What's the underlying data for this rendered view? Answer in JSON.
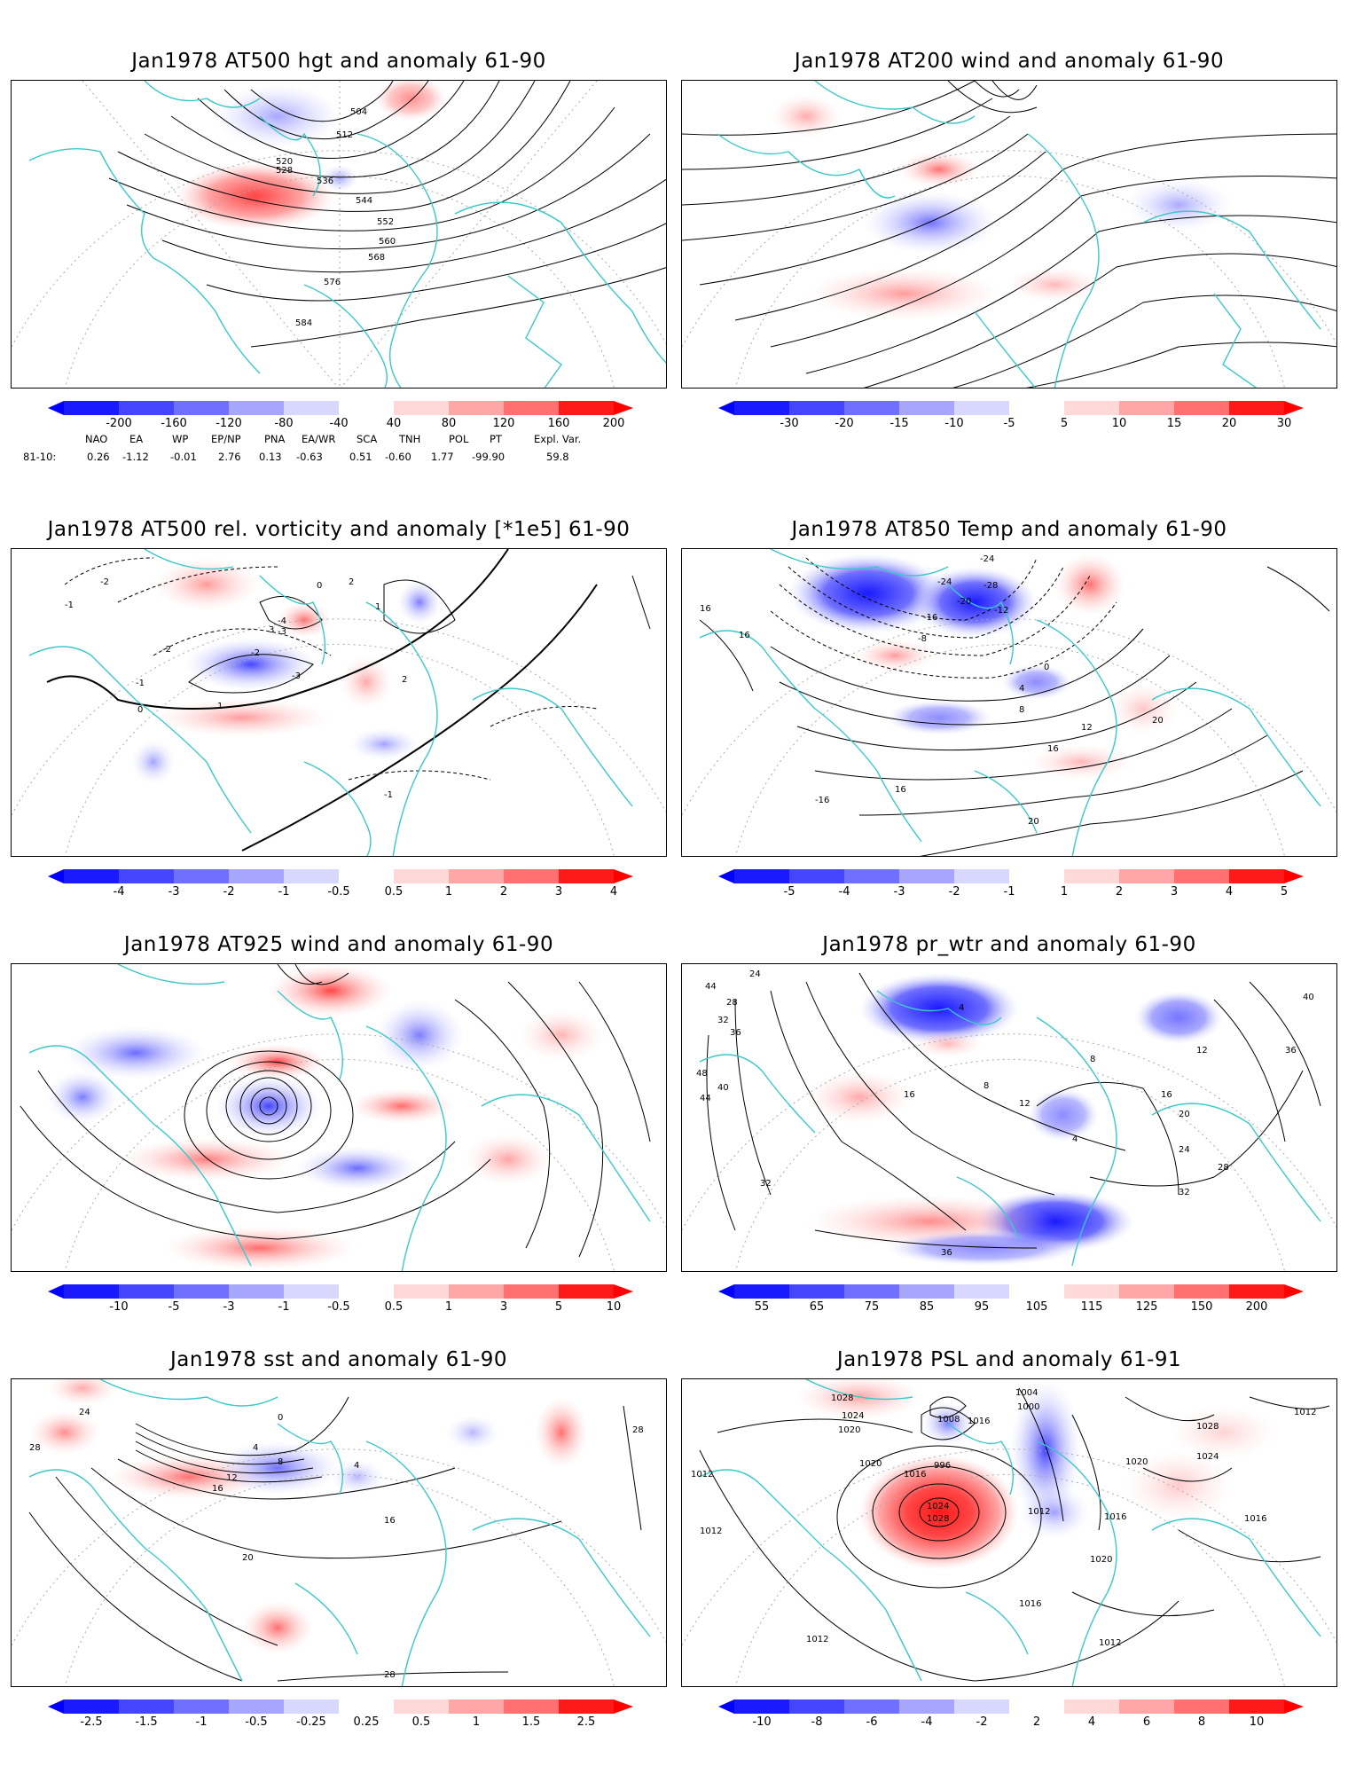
{
  "panels": [
    {
      "id": "p1",
      "title": "Jan1978 AT500 hgt and anomaly 61-90",
      "contour_labels": [
        "504",
        "512",
        "520",
        "528",
        "536",
        "544",
        "552",
        "560",
        "568",
        "576",
        "584"
      ],
      "colorbar_labels": [
        "-200",
        "-160",
        "-120",
        "-80",
        "-40",
        "40",
        "80",
        "120",
        "160",
        "200"
      ]
    },
    {
      "id": "p2",
      "title": "Jan1978 AT200 wind and anomaly 61-90",
      "contour_labels": [],
      "colorbar_labels": [
        "-30",
        "-20",
        "-15",
        "-10",
        "-5",
        "5",
        "10",
        "15",
        "20",
        "30"
      ]
    },
    {
      "id": "p3",
      "title": "Jan1978 AT500 rel. vorticity and anomaly [*1e5] 61-90",
      "contour_labels": [
        "-1",
        "-2",
        "2",
        "1",
        "0",
        "-4",
        "-3",
        "-2",
        "-3",
        "3",
        "1",
        "-1",
        "2",
        "0",
        "-2",
        "-1"
      ],
      "colorbar_labels": [
        "-4",
        "-3",
        "-2",
        "-1",
        "-0.5",
        "0.5",
        "1",
        "2",
        "3",
        "4"
      ]
    },
    {
      "id": "p4",
      "title": "Jan1978 AT850 Temp and anomaly 61-90",
      "contour_labels": [
        "-24",
        "-28",
        "-20",
        "-24",
        "-12",
        "-16",
        "-8",
        "16",
        "16",
        "0",
        "4",
        "8",
        "12",
        "16",
        "20",
        "-16",
        "16",
        "20"
      ],
      "colorbar_labels": [
        "-5",
        "-4",
        "-3",
        "-2",
        "-1",
        "1",
        "2",
        "3",
        "4",
        "5"
      ]
    },
    {
      "id": "p5",
      "title": "Jan1978 AT925 wind and anomaly 61-90",
      "contour_labels": [],
      "colorbar_labels": [
        "-10",
        "-5",
        "-3",
        "-1",
        "-0.5",
        "0.5",
        "1",
        "3",
        "5",
        "10"
      ]
    },
    {
      "id": "p6",
      "title": "Jan1978 pr_wtr and anomaly 61-90",
      "contour_labels": [
        "44",
        "24",
        "28",
        "32",
        "36",
        "48",
        "40",
        "44",
        "16",
        "12",
        "8",
        "4",
        "8",
        "12",
        "16",
        "20",
        "24",
        "28",
        "32",
        "36",
        "40",
        "36",
        "4",
        "32"
      ],
      "colorbar_labels": [
        "55",
        "65",
        "75",
        "85",
        "95",
        "105",
        "115",
        "125",
        "150",
        "200"
      ]
    },
    {
      "id": "p7",
      "title": "Jan1978 sst and anomaly 61-90",
      "contour_labels": [
        "28",
        "24",
        "0",
        "4",
        "8",
        "12",
        "16",
        "20",
        "16",
        "28",
        "28",
        "4"
      ],
      "colorbar_labels": [
        "-2.5",
        "-1.5",
        "-1",
        "-0.5",
        "-0.25",
        "0.25",
        "0.5",
        "1",
        "1.5",
        "2.5"
      ]
    },
    {
      "id": "p8",
      "title": "Jan1978 PSL and anomaly 61-91",
      "contour_labels": [
        "1028",
        "1024",
        "1020",
        "1008",
        "1016",
        "1000",
        "1004",
        "996",
        "1012",
        "1016",
        "1024",
        "1028",
        "1020",
        "1012",
        "1016",
        "1020",
        "1024",
        "1028",
        "1012",
        "1016",
        "1020",
        "1012",
        "1012",
        "1012",
        "1016"
      ],
      "colorbar_labels": [
        "-10",
        "-8",
        "-6",
        "-4",
        "-2",
        "2",
        "4",
        "6",
        "8",
        "10"
      ]
    }
  ],
  "teleconnection": {
    "headers": [
      "NAO",
      "EA",
      "WP",
      "EP/NP",
      "PNA",
      "EA/WR",
      "SCA",
      "TNH",
      "POL",
      "PT",
      "Expl. Var."
    ],
    "row_label": "81-10:",
    "values": [
      "0.26",
      "-1.12",
      "-0.01",
      "2.76",
      "0.13",
      "-0.63",
      "0.51",
      "-0.60",
      "1.77",
      "-99.90",
      "59.8"
    ]
  },
  "colors": {
    "coast": "#3cc8c8",
    "blue_scale": [
      "#1a1aff",
      "#4545ff",
      "#7070ff",
      "#a6a6ff",
      "#d8d8ff"
    ],
    "red_scale": [
      "#ffd8d8",
      "#ffa6a6",
      "#ff7070",
      "#ff4545",
      "#ff1a1a"
    ],
    "contour": "#000000",
    "grid": "#aaaaaa"
  }
}
